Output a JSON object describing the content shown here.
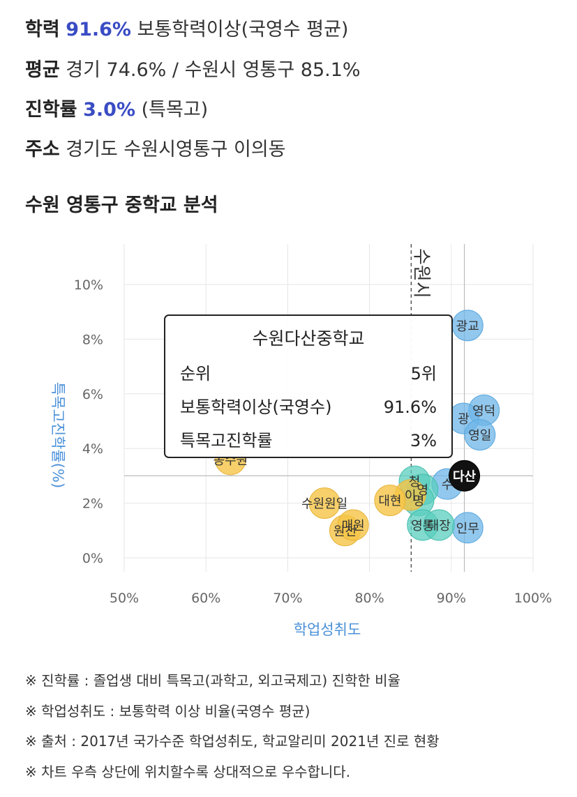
{
  "stats": {
    "achievement": {
      "label": "학력",
      "value": "91.6%",
      "suffix": "보통학력이상(국영수 평균)"
    },
    "average": {
      "label": "평균",
      "text": "경기 74.6% / 수원시 영통구 85.1%"
    },
    "advancement": {
      "label": "진학률",
      "value": "3.0%",
      "suffix": "(특목고)"
    },
    "address": {
      "label": "주소",
      "text": "경기도 수원시영통구 이의동"
    }
  },
  "section_title": "수원 영통구 중학교 분석",
  "chart_data": {
    "type": "scatter",
    "xlabel": "학업성취도",
    "ylabel": "특목고진학률(%)",
    "xlim": [
      50,
      100
    ],
    "ylim": [
      0,
      10
    ],
    "x_ticks": [
      "50%",
      "60%",
      "70%",
      "80%",
      "90%",
      "100%"
    ],
    "y_ticks": [
      "0%",
      "2%",
      "4%",
      "6%",
      "8%",
      "10%"
    ],
    "grid": true,
    "reference_lines": [
      {
        "label": "수원시",
        "axis": "x",
        "value": 85.1,
        "style": "dashed"
      },
      {
        "axis": "x",
        "value": 91.6,
        "style": "solid"
      },
      {
        "axis": "y",
        "value": 3.0,
        "style": "solid"
      }
    ],
    "points": [
      {
        "label": "광교",
        "x": 92,
        "y": 8.5,
        "group": "blue"
      },
      {
        "label": "영덕",
        "x": 94,
        "y": 5.4,
        "group": "blue"
      },
      {
        "label": "광",
        "x": 91.5,
        "y": 5.1,
        "group": "blue"
      },
      {
        "label": "영일",
        "x": 93.5,
        "y": 4.5,
        "group": "blue"
      },
      {
        "label": "수",
        "x": 89.5,
        "y": 2.7,
        "group": "blue"
      },
      {
        "label": "인무",
        "x": 92,
        "y": 1.1,
        "group": "blue"
      },
      {
        "label": "다산",
        "x": 91.6,
        "y": 3.0,
        "group": "selected"
      },
      {
        "label": "청",
        "x": 85.5,
        "y": 2.8,
        "group": "teal"
      },
      {
        "label": "영",
        "x": 86.5,
        "y": 2.5,
        "group": "teal"
      },
      {
        "label": "명",
        "x": 86,
        "y": 2.1,
        "group": "teal"
      },
      {
        "label": "영통",
        "x": 86.5,
        "y": 1.2,
        "group": "teal"
      },
      {
        "label": "태장",
        "x": 88.5,
        "y": 1.2,
        "group": "teal"
      },
      {
        "label": "이",
        "x": 85,
        "y": 2.3,
        "group": "yellow"
      },
      {
        "label": "대현",
        "x": 82.5,
        "y": 2.1,
        "group": "yellow"
      },
      {
        "label": "동수원",
        "x": 63,
        "y": 3.6,
        "group": "yellow"
      },
      {
        "label": "수원원일",
        "x": 74.5,
        "y": 2.0,
        "group": "yellow"
      },
      {
        "label": "원천",
        "x": 77,
        "y": 1.0,
        "group": "yellow"
      },
      {
        "label": "매원",
        "x": 78,
        "y": 1.2,
        "group": "yellow"
      }
    ],
    "tooltip": {
      "title": "수원다산중학교",
      "rows": [
        {
          "label": "순위",
          "value": "5위"
        },
        {
          "label": "보통학력이상(국영수)",
          "value": "91.6%"
        },
        {
          "label": "특목고진학률",
          "value": "3%"
        }
      ]
    }
  },
  "notes": [
    "※ 진학률 : 졸업생 대비 특목고(과학고, 외고국제고) 진학한 비율",
    "※ 학업성취도 : 보통학력 이상 비율(국영수 평균)",
    "※ 출처 : 2017년 국가수준 학업성취도, 학교알리미 2021년 진로 현황",
    "※ 차트 우측 상단에 위치할수록 상대적으로 우수합니다."
  ]
}
